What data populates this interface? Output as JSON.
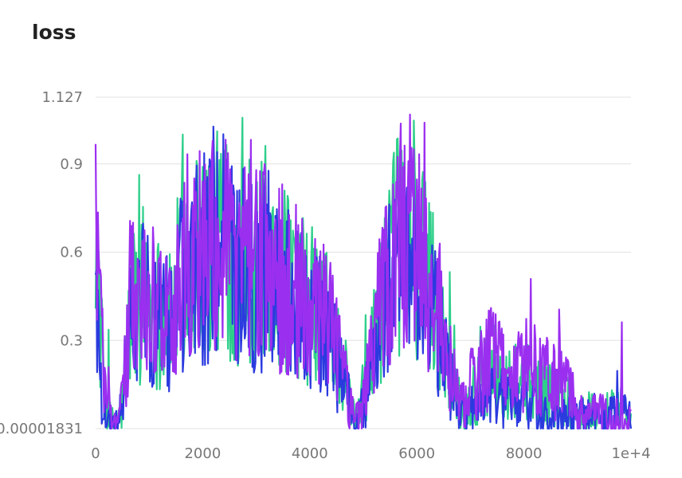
{
  "chart_data": {
    "type": "line",
    "title": "loss",
    "xlabel": "",
    "ylabel": "",
    "xlim": [
      0,
      10000
    ],
    "ylim": [
      1.831e-05,
      1.127
    ],
    "x_tick_labels": [
      "0",
      "2000",
      "4000",
      "6000",
      "8000",
      "1e+4"
    ],
    "x_tick_values": [
      0,
      2000,
      4000,
      6000,
      8000,
      10000
    ],
    "y_tick_labels": [
      "0.00001831",
      "0.3",
      "0.6",
      "0.9",
      "1.127"
    ],
    "y_tick_values": [
      1.831e-05,
      0.3,
      0.6,
      0.9,
      1.127
    ],
    "grid": true,
    "legend": "none",
    "colors": [
      "#2ecf8a",
      "#2b3adf",
      "#9b2ff0"
    ],
    "series": [
      {
        "x": [
          0,
          100,
          200,
          300,
          400,
          500,
          600,
          700,
          800,
          900,
          1000,
          1200,
          1400,
          1600,
          1800,
          2000,
          2200,
          2400,
          2600,
          2800,
          3000,
          3200,
          3400,
          3600,
          3800,
          4000,
          4200,
          4400,
          4600,
          4800,
          4900,
          5000,
          5200,
          5400,
          5600,
          5800,
          6000,
          6200,
          6400,
          6600,
          6800,
          6900,
          7000,
          7200,
          7400,
          7600,
          7800,
          8000,
          8200,
          8400,
          8600,
          8800,
          9000,
          9200,
          9400,
          9600,
          9800,
          10000
        ],
        "values": [
          0.62,
          0.3,
          0.05,
          0.02,
          0.01,
          0.08,
          0.3,
          0.45,
          0.38,
          0.5,
          0.42,
          0.4,
          0.35,
          0.55,
          0.6,
          0.62,
          0.58,
          0.7,
          0.55,
          0.6,
          0.55,
          0.6,
          0.5,
          0.5,
          0.45,
          0.42,
          0.4,
          0.35,
          0.2,
          0.05,
          0.03,
          0.12,
          0.3,
          0.5,
          0.6,
          0.65,
          0.6,
          0.5,
          0.42,
          0.22,
          0.08,
          0.05,
          0.1,
          0.15,
          0.2,
          0.18,
          0.17,
          0.16,
          0.15,
          0.14,
          0.12,
          0.1,
          0.04,
          0.05,
          0.06,
          0.05,
          0.06,
          0.04
        ]
      },
      {
        "x": [
          0,
          100,
          200,
          300,
          400,
          500,
          600,
          700,
          800,
          900,
          1000,
          1200,
          1400,
          1600,
          1800,
          2000,
          2200,
          2400,
          2600,
          2800,
          3000,
          3200,
          3400,
          3600,
          3800,
          4000,
          4200,
          4400,
          4600,
          4800,
          4900,
          5000,
          5200,
          5400,
          5600,
          5800,
          6000,
          6200,
          6400,
          6600,
          6800,
          6900,
          7000,
          7200,
          7400,
          7600,
          7800,
          8000,
          8200,
          8400,
          8600,
          8800,
          9000,
          9200,
          9400,
          9600,
          9800,
          10000
        ],
        "values": [
          0.6,
          0.15,
          0.03,
          0.01,
          0.01,
          0.1,
          0.28,
          0.4,
          0.35,
          0.45,
          0.4,
          0.38,
          0.33,
          0.5,
          0.55,
          0.58,
          0.55,
          0.62,
          0.52,
          0.55,
          0.5,
          0.55,
          0.47,
          0.45,
          0.42,
          0.38,
          0.36,
          0.3,
          0.18,
          0.04,
          0.02,
          0.08,
          0.25,
          0.45,
          0.55,
          0.6,
          0.55,
          0.45,
          0.35,
          0.18,
          0.05,
          0.03,
          0.06,
          0.08,
          0.12,
          0.1,
          0.09,
          0.08,
          0.07,
          0.06,
          0.05,
          0.04,
          0.03,
          0.04,
          0.05,
          0.04,
          0.06,
          0.05
        ]
      },
      {
        "x": [
          0,
          100,
          200,
          300,
          400,
          500,
          600,
          700,
          800,
          900,
          1000,
          1200,
          1400,
          1600,
          1800,
          2000,
          2200,
          2400,
          2600,
          2800,
          3000,
          3200,
          3400,
          3600,
          3800,
          4000,
          4200,
          4400,
          4600,
          4800,
          4900,
          5000,
          5200,
          5400,
          5600,
          5800,
          6000,
          6200,
          6400,
          6600,
          6800,
          6900,
          7000,
          7200,
          7400,
          7600,
          7800,
          8000,
          8200,
          8400,
          8600,
          8800,
          9000,
          9200,
          9400,
          9600,
          9800,
          10000
        ],
        "values": [
          0.72,
          0.35,
          0.08,
          0.02,
          0.01,
          0.09,
          0.3,
          0.42,
          0.37,
          0.48,
          0.42,
          0.4,
          0.35,
          0.55,
          0.62,
          0.65,
          0.6,
          0.68,
          0.56,
          0.6,
          0.56,
          0.6,
          0.52,
          0.5,
          0.46,
          0.42,
          0.4,
          0.34,
          0.2,
          0.05,
          0.03,
          0.1,
          0.3,
          0.5,
          0.62,
          0.68,
          0.62,
          0.5,
          0.42,
          0.25,
          0.1,
          0.06,
          0.14,
          0.2,
          0.24,
          0.22,
          0.2,
          0.22,
          0.2,
          0.18,
          0.17,
          0.15,
          0.05,
          0.04,
          0.05,
          0.04,
          0.05,
          0.03
        ]
      }
    ]
  }
}
